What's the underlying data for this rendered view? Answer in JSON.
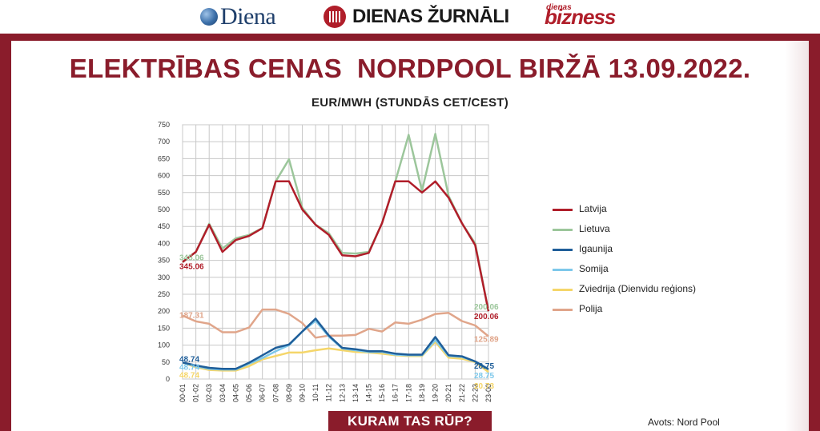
{
  "brands": {
    "diena": "Diena",
    "zurnali": "DIENAS ŽURNĀLI",
    "bizness_small": "dienas",
    "bizness": "bizness"
  },
  "title": "ELEKTRĪBAS CENAS  NORDPOOL BIRŽĀ 13.09.2022.",
  "footer": "KURAM TAS RŪP?",
  "source": "Avots: Nord Pool",
  "chart_data": {
    "type": "line",
    "title": "",
    "subtitle": "EUR/MWH (STUNDĀS CET/CEST)",
    "ylim": [
      0,
      750
    ],
    "yticks": [
      0,
      50,
      100,
      150,
      200,
      250,
      300,
      350,
      400,
      450,
      500,
      550,
      600,
      650,
      700,
      750
    ],
    "grid": true,
    "legend_position": "right",
    "categories": [
      "00-01",
      "01-02",
      "02-03",
      "03-04",
      "04-05",
      "05-06",
      "06-07",
      "07-08",
      "08-09",
      "09-10",
      "10-11",
      "11-12",
      "12-13",
      "13-14",
      "14-15",
      "15-16",
      "16-17",
      "17-18",
      "18-19",
      "19-20",
      "20-21",
      "21-22",
      "22-23",
      "23-00"
    ],
    "series": [
      {
        "name": "Polija",
        "color": "#e0a58a",
        "values": [
          187.31,
          170,
          163,
          138,
          138,
          152,
          205,
          205,
          192,
          165,
          122,
          128,
          128,
          130,
          148,
          140,
          167,
          163,
          175,
          192,
          195,
          171,
          158,
          125.89
        ]
      },
      {
        "name": "Zviedrija (Dienvidu reģions)",
        "color": "#f5d66a",
        "values": [
          48.74,
          35,
          27,
          25,
          25,
          38,
          58,
          68,
          78,
          78,
          85,
          90,
          85,
          80,
          78,
          75,
          70,
          68,
          68,
          110,
          63,
          60,
          50,
          20.73
        ]
      },
      {
        "name": "Somija",
        "color": "#7ec8ea",
        "values": [
          48.74,
          38,
          30,
          28,
          28,
          45,
          62,
          82,
          100,
          140,
          172,
          125,
          90,
          85,
          80,
          80,
          72,
          70,
          70,
          115,
          68,
          65,
          52,
          28.75
        ]
      },
      {
        "name": "Igaunija",
        "color": "#1f5e99",
        "values": [
          48.74,
          40,
          33,
          30,
          30,
          48,
          70,
          92,
          102,
          140,
          178,
          128,
          92,
          88,
          82,
          82,
          75,
          72,
          72,
          124,
          70,
          67,
          52,
          28.75
        ]
      },
      {
        "name": "Lietuva",
        "color": "#9cc69b",
        "values": [
          345.06,
          375,
          458,
          385,
          415,
          425,
          445,
          583,
          648,
          505,
          455,
          430,
          372,
          370,
          375,
          460,
          583,
          720,
          555,
          723,
          540,
          460,
          400,
          200.06
        ]
      },
      {
        "name": "Latvija",
        "color": "#b01e2a",
        "values": [
          345.06,
          375,
          455,
          375,
          410,
          422,
          445,
          583,
          583,
          500,
          455,
          425,
          365,
          362,
          372,
          460,
          583,
          583,
          550,
          583,
          535,
          460,
          395,
          200.06
        ]
      }
    ],
    "data_labels": [
      {
        "series": "Lietuva",
        "text": "345.06",
        "side": "left"
      },
      {
        "series": "Latvija",
        "text": "345.06",
        "side": "left"
      },
      {
        "series": "Polija",
        "text": "187.31",
        "side": "left"
      },
      {
        "series": "Igaunija",
        "text": "48.74",
        "side": "left"
      },
      {
        "series": "Somija",
        "text": "48.74",
        "side": "left"
      },
      {
        "series": "Zviedrija (Dienvidu reģions)",
        "text": "48.74",
        "side": "left"
      },
      {
        "series": "Lietuva",
        "text": "200.06",
        "side": "right"
      },
      {
        "series": "Latvija",
        "text": "200.06",
        "side": "right"
      },
      {
        "series": "Polija",
        "text": "125.89",
        "side": "right"
      },
      {
        "series": "Igaunija",
        "text": "28.75",
        "side": "right"
      },
      {
        "series": "Somija",
        "text": "28.75",
        "side": "right"
      },
      {
        "series": "Zviedrija (Dienvidu reģions)",
        "text": "20.73",
        "side": "right"
      }
    ],
    "legend": [
      {
        "name": "Latvija",
        "color": "#b01e2a"
      },
      {
        "name": "Lietuva",
        "color": "#9cc69b"
      },
      {
        "name": "Igaunija",
        "color": "#1f5e99"
      },
      {
        "name": "Somija",
        "color": "#7ec8ea"
      },
      {
        "name": "Zviedrija (Dienvidu reģions)",
        "color": "#f5d66a"
      },
      {
        "name": "Polija",
        "color": "#e0a58a"
      }
    ]
  }
}
